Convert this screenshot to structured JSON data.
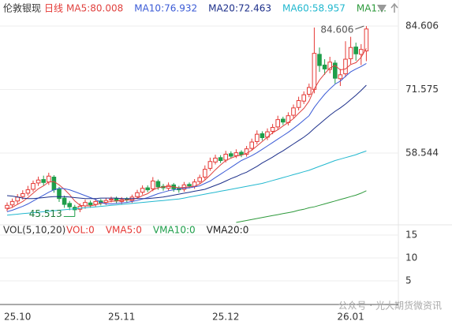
{
  "chart_data": {
    "type": "candlestick",
    "title": "伦敦银现",
    "period": "日线",
    "categories": [
      null,
      null,
      "25.10",
      null,
      null,
      null,
      null,
      null,
      null,
      null,
      null,
      null,
      null,
      null,
      null,
      null,
      null,
      null,
      null,
      null,
      null,
      null,
      "25.11",
      null,
      null,
      null,
      null,
      null,
      null,
      null,
      null,
      null,
      null,
      null,
      null,
      null,
      null,
      null,
      null,
      null,
      null,
      null,
      "25.12",
      null,
      null,
      null,
      null,
      null,
      null,
      null,
      null,
      null,
      null,
      null,
      null,
      null,
      null,
      null,
      null,
      null,
      null,
      null,
      null,
      null,
      null,
      null,
      "26.01",
      null,
      null,
      null
    ],
    "open": [
      47.2,
      47.9,
      48.7,
      49.6,
      50.3,
      51.1,
      52.4,
      53.1,
      52.6,
      53.6,
      51.1,
      49.3,
      48.2,
      47.4,
      47.0,
      47.7,
      48.3,
      48.0,
      48.7,
      48.4,
      48.9,
      49.2,
      48.6,
      49.1,
      48.8,
      49.6,
      50.5,
      51.4,
      51.2,
      52.7,
      51.7,
      51.3,
      52.0,
      51.3,
      51.1,
      52.1,
      51.7,
      52.7,
      53.6,
      55.4,
      56.7,
      57.6,
      57.1,
      58.4,
      58.0,
      58.7,
      58.3,
      59.5,
      60.9,
      62.5,
      61.8,
      63.0,
      63.9,
      65.5,
      64.8,
      66.3,
      67.9,
      69.2,
      70.6,
      71.6,
      78.8,
      76.6,
      75.7,
      77.0,
      73.8,
      74.8,
      77.9,
      80.3,
      78.8,
      79.5
    ],
    "high": [
      48.4,
      49.2,
      50.1,
      50.9,
      51.8,
      52.9,
      53.7,
      53.9,
      54.5,
      54.0,
      51.6,
      49.8,
      48.7,
      47.9,
      48.2,
      49.0,
      48.8,
      49.2,
      49.1,
      49.3,
      49.6,
      49.6,
      49.5,
      49.5,
      50.0,
      51.0,
      51.9,
      51.9,
      53.6,
      53.1,
      52.2,
      52.5,
      52.4,
      51.8,
      52.6,
      52.5,
      53.2,
      54.1,
      56.0,
      57.6,
      58.2,
      58.1,
      59.0,
      58.9,
      59.3,
      59.1,
      60.0,
      61.5,
      63.2,
      63.0,
      63.6,
      64.5,
      66.2,
      66.0,
      66.9,
      68.5,
      70.1,
      71.2,
      72.8,
      84.3,
      80.2,
      77.8,
      78.3,
      77.6,
      75.8,
      81.5,
      82.4,
      81.2,
      80.9,
      84.606
    ],
    "low": [
      46.6,
      47.3,
      48.1,
      49.0,
      49.8,
      50.6,
      51.8,
      51.9,
      52.0,
      50.4,
      48.5,
      47.3,
      46.8,
      45.513,
      46.4,
      47.1,
      47.3,
      47.5,
      47.8,
      47.9,
      48.4,
      48.2,
      48.1,
      48.4,
      48.3,
      49.1,
      50.0,
      50.5,
      50.7,
      51.0,
      50.8,
      50.8,
      50.6,
      50.4,
      50.6,
      51.3,
      51.2,
      52.2,
      53.1,
      54.9,
      56.2,
      56.5,
      56.6,
      57.4,
      57.5,
      57.7,
      57.8,
      59.0,
      60.3,
      61.1,
      61.2,
      62.4,
      63.3,
      64.3,
      64.2,
      65.7,
      67.3,
      68.6,
      70.0,
      70.8,
      75.2,
      74.6,
      74.9,
      72.8,
      72.3,
      74.1,
      76.8,
      77.5,
      76.6,
      77.4
    ],
    "close": [
      47.8,
      48.6,
      49.5,
      50.2,
      51.0,
      52.3,
      53.0,
      52.5,
      53.8,
      51.0,
      49.2,
      48.0,
      47.5,
      46.9,
      47.6,
      48.4,
      47.9,
      48.6,
      48.3,
      48.8,
      49.1,
      48.7,
      49.0,
      48.9,
      49.5,
      50.4,
      51.3,
      51.0,
      52.8,
      51.6,
      51.4,
      51.9,
      51.2,
      51.0,
      52.0,
      51.8,
      52.6,
      53.5,
      55.2,
      56.8,
      57.5,
      57.0,
      58.3,
      57.9,
      58.6,
      58.2,
      59.4,
      60.8,
      62.4,
      61.7,
      62.9,
      63.8,
      65.4,
      64.9,
      66.2,
      67.8,
      69.3,
      70.5,
      72.0,
      79.0,
      76.5,
      75.8,
      77.2,
      73.9,
      74.6,
      77.8,
      80.2,
      78.9,
      79.8,
      84.0
    ],
    "up_color": "#e53935",
    "down_color": "#1e9e4a",
    "series": [
      {
        "label": "MA5:80.008",
        "color": "#e0423f",
        "values": [
          47.0,
          47.4,
          48.0,
          48.6,
          49.4,
          50.3,
          51.2,
          51.8,
          52.6,
          52.7,
          52.0,
          51.1,
          50.0,
          48.7,
          47.8,
          47.7,
          47.7,
          47.9,
          48.2,
          48.4,
          48.6,
          48.7,
          48.8,
          48.9,
          49.0,
          49.3,
          49.8,
          50.2,
          51.0,
          51.4,
          51.6,
          51.7,
          51.6,
          51.4,
          51.5,
          51.6,
          51.7,
          52.2,
          53.0,
          54.0,
          55.1,
          56.1,
          57.0,
          57.5,
          57.9,
          58.1,
          58.5,
          59.1,
          60.0,
          60.9,
          61.8,
          62.7,
          63.3,
          64.1,
          64.8,
          65.6,
          66.7,
          67.7,
          69.2,
          71.7,
          73.5,
          74.8,
          76.0,
          76.5,
          75.6,
          75.8,
          76.7,
          77.1,
          78.2,
          80.008
        ]
      },
      {
        "label": "MA10:76.932",
        "color": "#3b5bd6",
        "values": [
          46.5,
          46.8,
          47.2,
          47.6,
          48.1,
          48.7,
          49.3,
          49.9,
          50.5,
          51.0,
          51.3,
          51.2,
          51.0,
          50.6,
          50.2,
          49.8,
          49.4,
          49.0,
          48.4,
          48.1,
          48.1,
          48.2,
          48.3,
          48.4,
          48.6,
          48.8,
          49.1,
          49.4,
          49.8,
          50.2,
          50.5,
          50.8,
          51.0,
          51.2,
          51.3,
          51.4,
          51.6,
          51.8,
          52.3,
          52.8,
          53.5,
          54.2,
          54.9,
          55.6,
          56.3,
          57.0,
          57.5,
          58.0,
          58.6,
          59.3,
          60.0,
          60.7,
          61.4,
          62.1,
          62.8,
          63.6,
          64.4,
          65.3,
          66.2,
          67.9,
          69.3,
          70.6,
          71.7,
          72.7,
          73.3,
          74.3,
          75.2,
          75.8,
          76.3,
          76.932
        ]
      },
      {
        "label": "MA20:72.463",
        "color": "#1c2f8a",
        "values": [
          49.8,
          49.7,
          49.5,
          49.3,
          49.2,
          49.2,
          49.3,
          49.4,
          49.5,
          49.6,
          49.6,
          49.6,
          49.5,
          49.4,
          49.3,
          49.2,
          49.2,
          49.2,
          49.3,
          49.3,
          49.3,
          49.3,
          49.2,
          49.2,
          49.2,
          49.2,
          49.2,
          49.2,
          49.3,
          49.4,
          49.5,
          49.7,
          49.9,
          50.1,
          50.3,
          50.5,
          50.7,
          50.9,
          51.1,
          51.5,
          51.9,
          52.3,
          52.8,
          53.3,
          53.7,
          54.2,
          54.6,
          55.2,
          55.8,
          56.5,
          57.1,
          57.7,
          58.4,
          59.0,
          59.7,
          60.4,
          61.1,
          61.8,
          62.6,
          63.6,
          64.5,
          65.4,
          66.3,
          67.1,
          67.8,
          68.6,
          69.5,
          70.4,
          71.4,
          72.463
        ]
      },
      {
        "label": "MA60:58.957",
        "color": "#22b8cf",
        "values": [
          45.8,
          45.9,
          46.0,
          46.1,
          46.2,
          46.3,
          46.4,
          46.5,
          46.6,
          46.7,
          46.8,
          46.9,
          47.0,
          47.1,
          47.2,
          47.3,
          47.4,
          47.5,
          47.6,
          47.7,
          47.8,
          47.9,
          48.0,
          48.1,
          48.2,
          48.3,
          48.4,
          48.5,
          48.6,
          48.7,
          48.8,
          48.9,
          49.0,
          49.1,
          49.3,
          49.5,
          49.7,
          49.9,
          50.1,
          50.3,
          50.5,
          50.7,
          50.9,
          51.1,
          51.3,
          51.5,
          51.7,
          51.9,
          52.1,
          52.3,
          52.6,
          52.9,
          53.2,
          53.5,
          53.8,
          54.1,
          54.4,
          54.7,
          55.0,
          55.4,
          55.8,
          56.2,
          56.6,
          57.0,
          57.3,
          57.6,
          57.9,
          58.2,
          58.6,
          58.957
        ]
      },
      {
        "label": "MA1…",
        "color": "#2e9a3c",
        "values": [
          null,
          null,
          null,
          null,
          null,
          null,
          null,
          null,
          null,
          null,
          null,
          null,
          null,
          null,
          null,
          null,
          null,
          null,
          null,
          null,
          null,
          null,
          null,
          null,
          null,
          null,
          null,
          null,
          null,
          null,
          null,
          null,
          null,
          null,
          null,
          null,
          null,
          null,
          null,
          null,
          null,
          null,
          null,
          null,
          44.3,
          44.5,
          44.7,
          44.9,
          45.1,
          45.3,
          45.5,
          45.7,
          45.9,
          46.1,
          46.3,
          46.5,
          46.8,
          47.0,
          47.3,
          47.5,
          47.8,
          48.1,
          48.4,
          48.7,
          49.0,
          49.3,
          49.6,
          49.9,
          50.3,
          50.8
        ]
      }
    ],
    "ylim": [
      44.13,
      86.39
    ],
    "yticks": [
      84.606,
      71.575,
      58.544
    ],
    "volume": {
      "title": "VOL(5,10,20)",
      "labels": [
        {
          "text": "VOL:0",
          "color": "#e53935"
        },
        {
          "text": "VMA5:0",
          "color": "#e53935"
        },
        {
          "text": "VMA10:0",
          "color": "#1e9e4a"
        },
        {
          "text": "VMA20:0",
          "color": "#222222"
        }
      ],
      "ylim": [
        0,
        16.2
      ],
      "yticks": [
        15,
        10,
        5
      ]
    },
    "watermark": "公众号 · 光大期货微资讯"
  }
}
